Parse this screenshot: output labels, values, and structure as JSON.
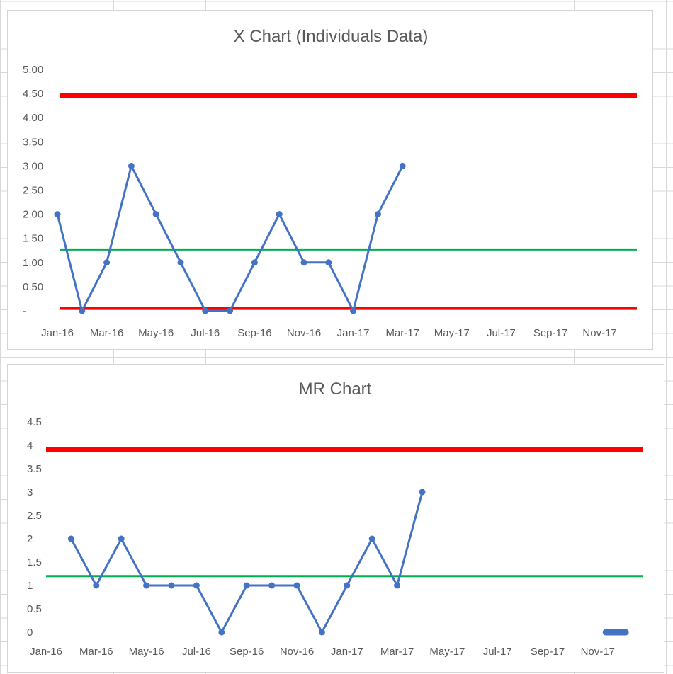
{
  "spreadsheet": {
    "gridline_color": "#d9d9d9"
  },
  "colors": {
    "series": "#4472c4",
    "upper_limit": "#ff0000",
    "lower_limit": "#ff0000",
    "center_line": "#00b050",
    "panel_border": "#d4d4d4",
    "text": "#595959"
  },
  "chart_data": [
    {
      "type": "line",
      "title": "X Chart (Individuals Data)",
      "xlabel": "",
      "ylabel": "",
      "x_tick_labels": [
        "Jan-16",
        "Mar-16",
        "May-16",
        "Jul-16",
        "Sep-16",
        "Nov-16",
        "Jan-17",
        "Mar-17",
        "May-17",
        "Jul-17",
        "Sep-17",
        "Nov-17"
      ],
      "y_tick_labels": [
        "-",
        "0.50",
        "1.00",
        "1.50",
        "2.00",
        "2.50",
        "3.00",
        "3.50",
        "4.00",
        "4.50",
        "5.00"
      ],
      "ylim": [
        0,
        5
      ],
      "x_months": [
        "Jan-16",
        "Feb-16",
        "Mar-16",
        "Apr-16",
        "May-16",
        "Jun-16",
        "Jul-16",
        "Aug-16",
        "Sep-16",
        "Oct-16",
        "Nov-16",
        "Dec-16",
        "Jan-17",
        "Feb-17",
        "Mar-17"
      ],
      "series": [
        {
          "values": [
            2,
            0,
            1,
            3,
            2,
            1,
            0,
            0,
            1,
            2,
            1,
            1,
            0,
            2,
            3
          ]
        }
      ],
      "limits": {
        "upper": 4.45,
        "center": 1.27,
        "lower": 0.05
      },
      "grid": false,
      "legend": "none"
    },
    {
      "type": "line",
      "title": "MR Chart",
      "xlabel": "",
      "ylabel": "",
      "x_tick_labels": [
        "Jan-16",
        "Mar-16",
        "May-16",
        "Jul-16",
        "Sep-16",
        "Nov-16",
        "Jan-17",
        "Mar-17",
        "May-17",
        "Jul-17",
        "Sep-17",
        "Nov-17"
      ],
      "y_tick_labels": [
        "0",
        "0.5",
        "1",
        "1.5",
        "2",
        "2.5",
        "3",
        "3.5",
        "4",
        "4.5"
      ],
      "ylim": [
        0,
        4.5
      ],
      "x_months": [
        "Feb-16",
        "Mar-16",
        "Apr-16",
        "May-16",
        "Jun-16",
        "Jul-16",
        "Aug-16",
        "Sep-16",
        "Oct-16",
        "Nov-16",
        "Dec-16",
        "Jan-17",
        "Feb-17",
        "Mar-17",
        "Apr-17"
      ],
      "series": [
        {
          "values": [
            2,
            1,
            2,
            1,
            1,
            1,
            0,
            1,
            1,
            1,
            0,
            1,
            2,
            1,
            3
          ]
        }
      ],
      "trailing_zero_months": [
        "Dec-17"
      ],
      "limits": {
        "upper": 3.91,
        "center": 1.2
      },
      "grid": false,
      "legend": "none"
    }
  ]
}
